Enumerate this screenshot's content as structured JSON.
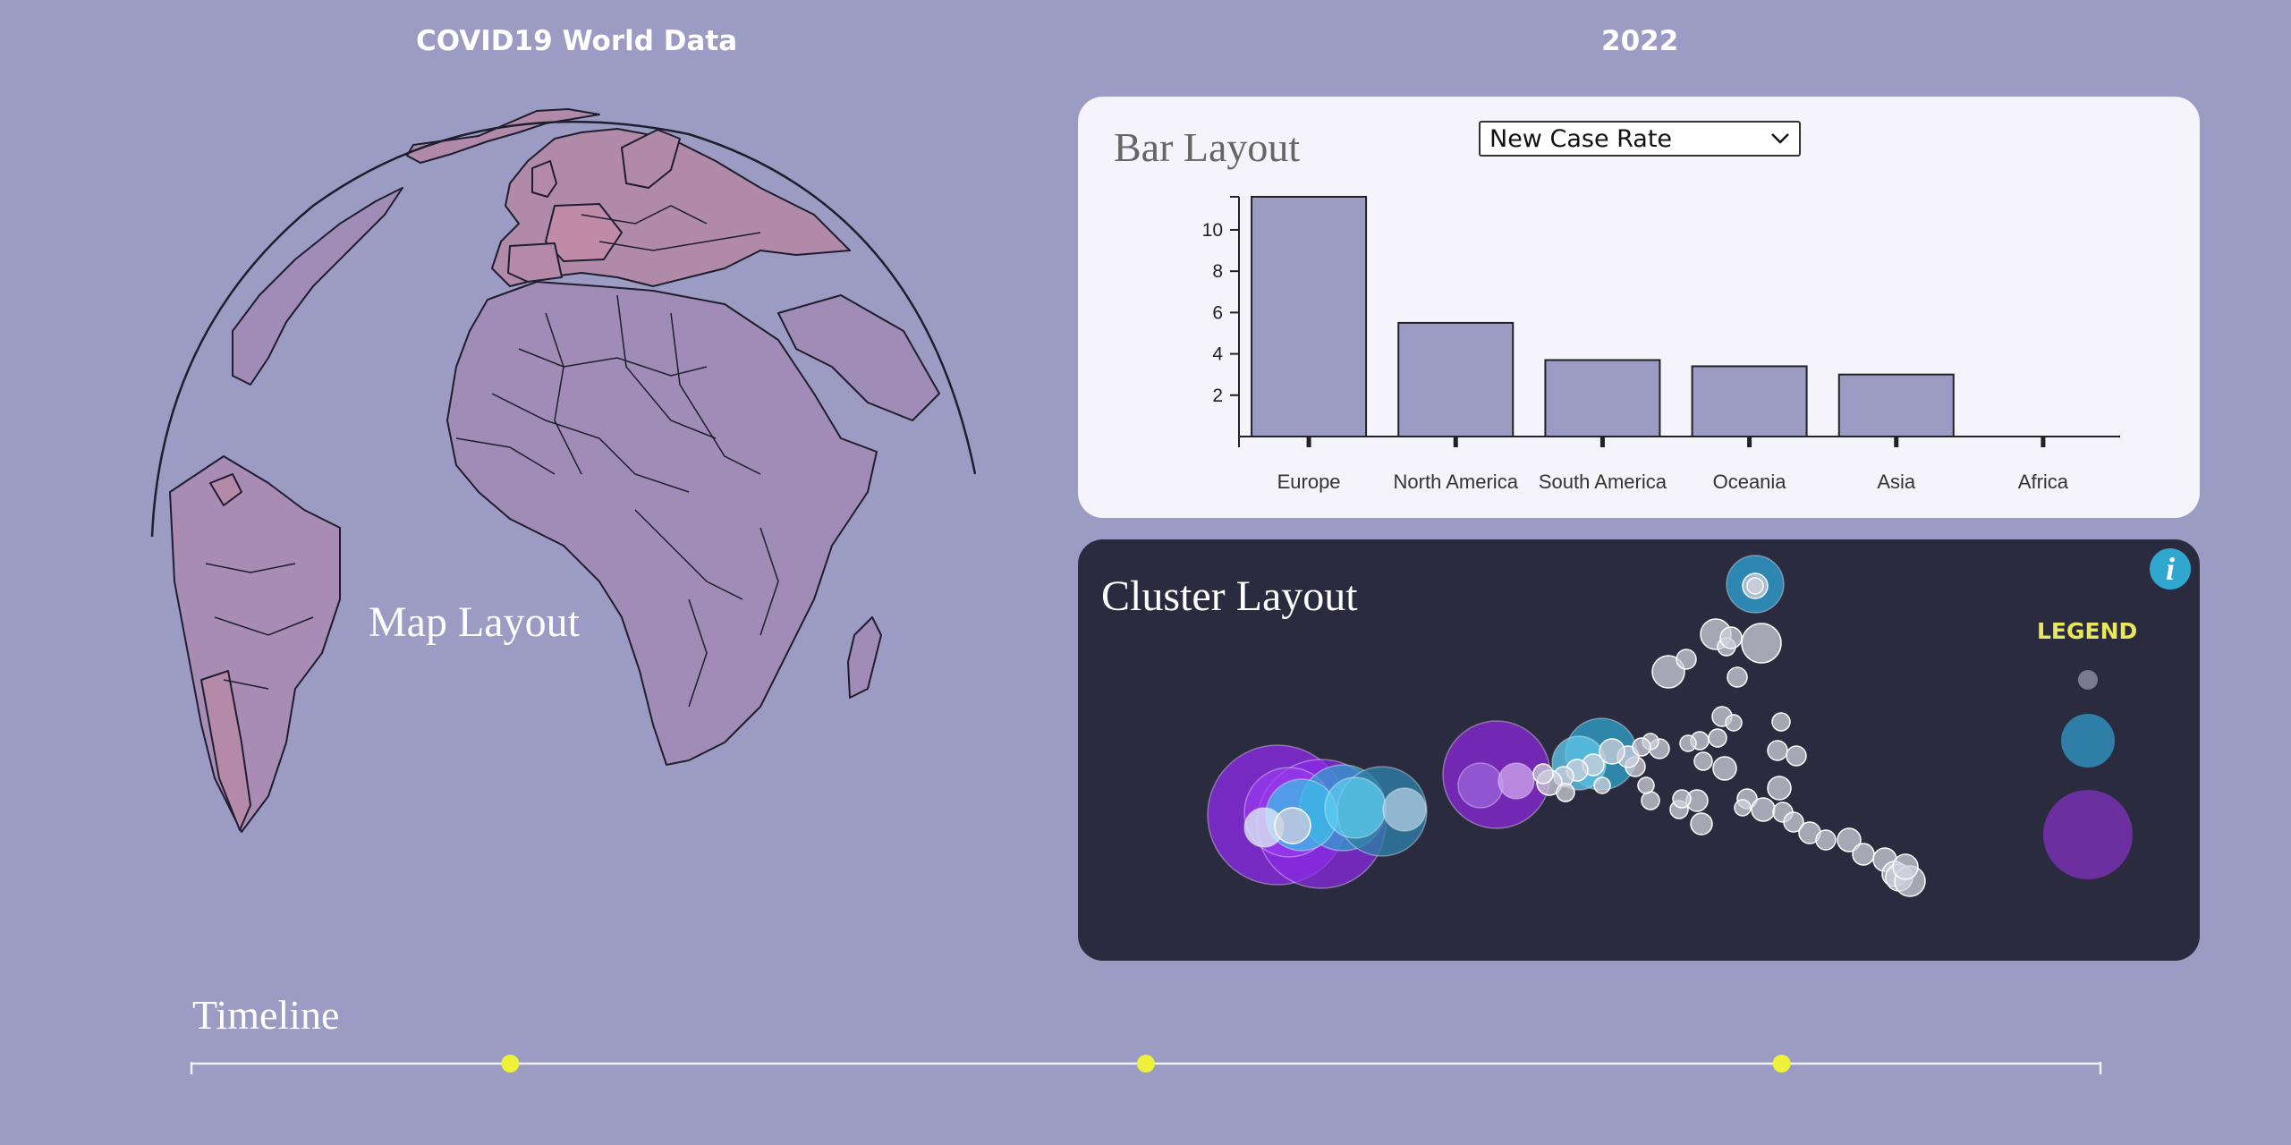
{
  "header": {
    "title": "COVID19 World Data",
    "year": "2022"
  },
  "map": {
    "label": "Map Layout",
    "highlight_color": "#b58aa8",
    "land_color": "#a08cb7"
  },
  "bar_panel": {
    "title": "Bar Layout",
    "metric_select": {
      "selected": "New Case Rate"
    }
  },
  "chart_data": {
    "type": "bar",
    "title": "",
    "xlabel": "",
    "ylabel": "",
    "categories": [
      "Europe",
      "North America",
      "South America",
      "Oceania",
      "Asia",
      "Africa"
    ],
    "values": [
      11.6,
      5.5,
      3.7,
      3.4,
      3.0,
      0.0
    ],
    "ylim": [
      0,
      11.6
    ],
    "yticks": [
      2,
      4,
      6,
      8,
      10
    ],
    "bar_color": "#9b9bc4",
    "grid": false
  },
  "cluster_panel": {
    "title": "Cluster Layout",
    "info_icon": "i",
    "legend_title": "LEGEND",
    "colors": {
      "small": "#b0b0c4",
      "medium": "#2f7ea8",
      "large": "#6b2fa0"
    }
  },
  "timeline": {
    "label": "Timeline",
    "marker_color": "#eef03a",
    "markers": [
      0.167,
      0.5,
      0.833
    ]
  }
}
